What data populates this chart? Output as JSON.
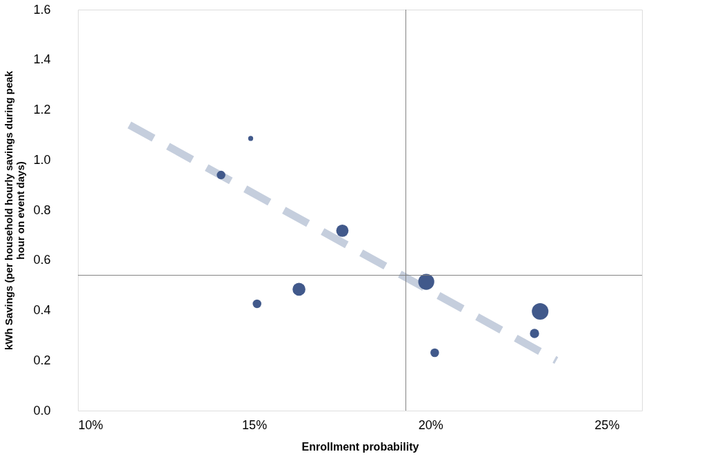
{
  "chart_data": {
    "type": "bubble",
    "xlabel": "Enrollment probability",
    "ylabel": "kWh Savings (per household hourly savings during peak hour on event days)",
    "xlim": [
      10,
      26
    ],
    "xticks": [
      {
        "value": 10,
        "label": "10%"
      },
      {
        "value": 15,
        "label": "15%"
      },
      {
        "value": 20,
        "label": "20%"
      },
      {
        "value": 25,
        "label": "25%"
      }
    ],
    "ylim": [
      0,
      1.6
    ],
    "yticks": [
      {
        "value": 0,
        "label": "0.0"
      },
      {
        "value": 0.2,
        "label": "0.2"
      },
      {
        "value": 0.4,
        "label": "0.4"
      },
      {
        "value": 0.6,
        "label": "0.6"
      },
      {
        "value": 0.8,
        "label": "0.8"
      },
      {
        "value": 1.0,
        "label": "1.0"
      },
      {
        "value": 1.2,
        "label": "1.2"
      },
      {
        "value": 1.4,
        "label": "1.4"
      },
      {
        "value": 1.6,
        "label": "1.6"
      }
    ],
    "series": [
      {
        "color": "#41598b",
        "x": [
          14.9,
          14.06,
          17.5,
          15.08,
          16.27,
          19.88,
          20.12,
          23.11,
          22.95
        ],
        "values": [
          1.086,
          0.94,
          0.718,
          0.426,
          0.484,
          0.514,
          0.231,
          0.396,
          0.308
        ],
        "sizes": [
          0.09,
          0.27,
          0.55,
          0.27,
          0.6,
          0.93,
          0.27,
          1,
          0.31
        ]
      },
      {
        "type": "line",
        "color": "#c5cedd",
        "line_style": "dashed",
        "x": [
          11.46,
          23.57
        ],
        "values": [
          1.14,
          0.2
        ]
      }
    ],
    "ref_lines": [
      {
        "axis": "x",
        "value": 19.3,
        "color": "#808080"
      },
      {
        "axis": "y",
        "value": 0.54,
        "color": "#808080"
      }
    ]
  }
}
